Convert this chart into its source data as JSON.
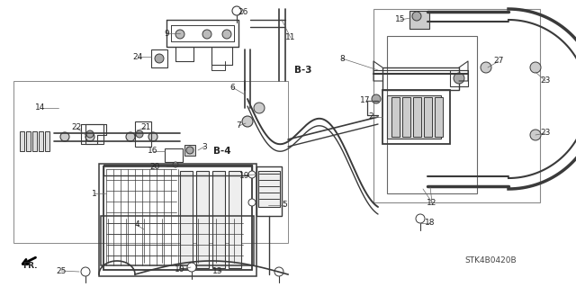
{
  "background_color": "#ffffff",
  "line_color": "#3a3a3a",
  "diagram_code": "STK4B0420B",
  "figsize": [
    6.4,
    3.19
  ],
  "dpi": 100
}
